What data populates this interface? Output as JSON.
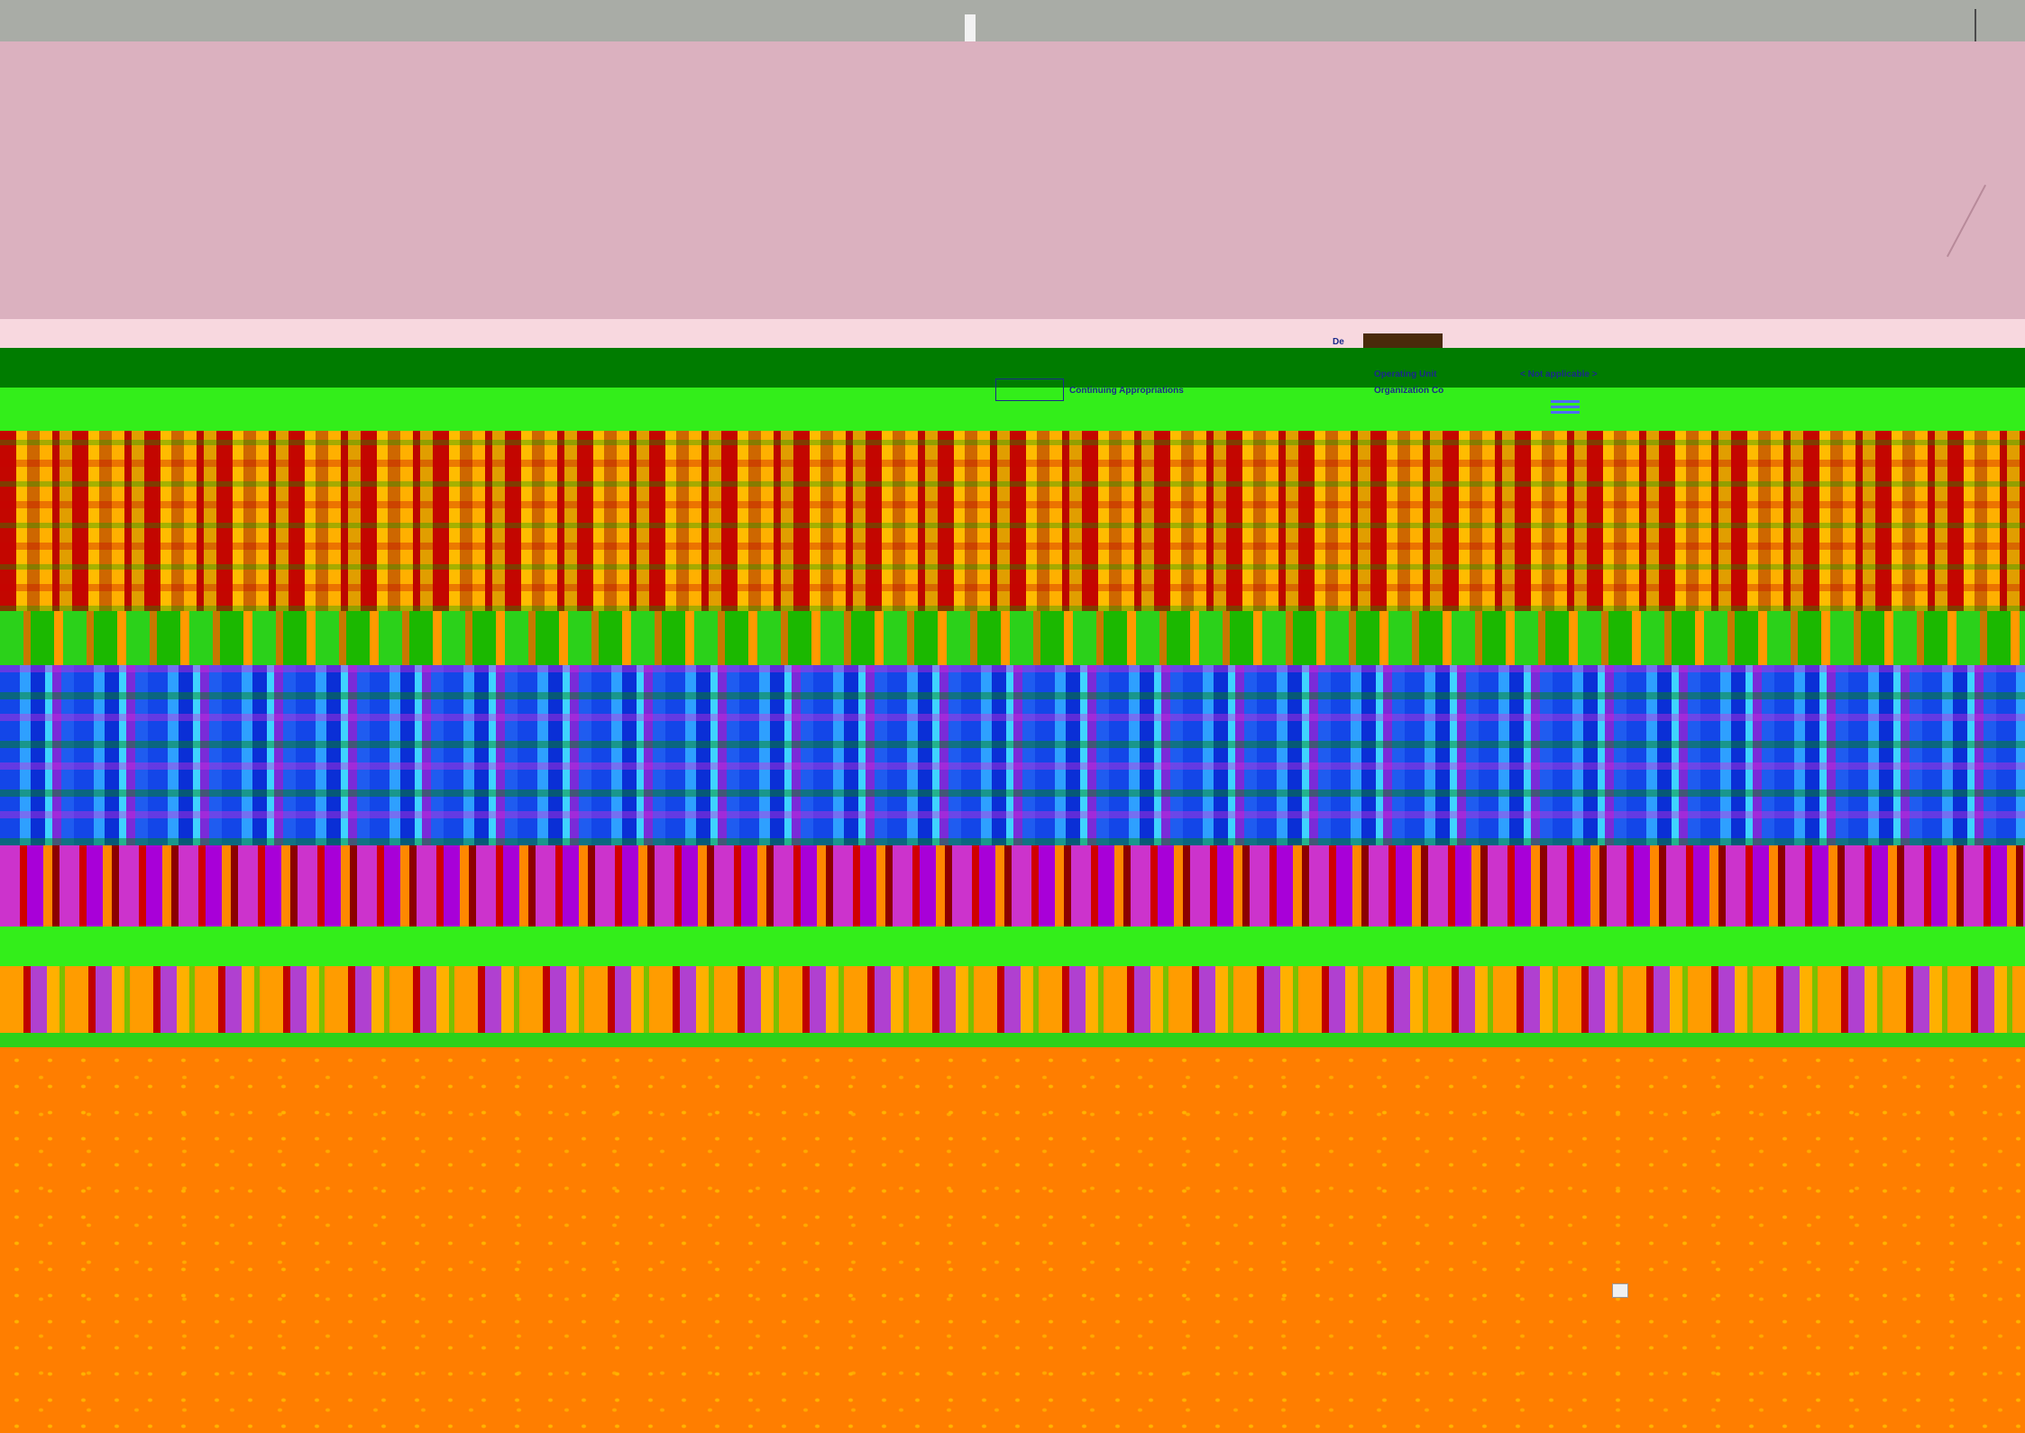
{
  "form": {
    "section_title_partial": "De",
    "fields": [
      {
        "label": "Operating Unit",
        "value": "< Not applicable >"
      },
      {
        "label": "Organization Co",
        "value": ""
      }
    ],
    "continuing_appropriations_label": "Continuing Appropriations"
  },
  "icons": {
    "list": "list-icon",
    "scroll": "scroll-chip-icon"
  },
  "colors": {
    "titlebar": "#a9aca6",
    "header_band": "#dbb1bf",
    "header_band_light": "#f8d8df",
    "toolbar_dark": "#007c00",
    "toolbar_bright": "#33ee1a",
    "background": "#ff7e00",
    "text": "#1a2a8a"
  }
}
